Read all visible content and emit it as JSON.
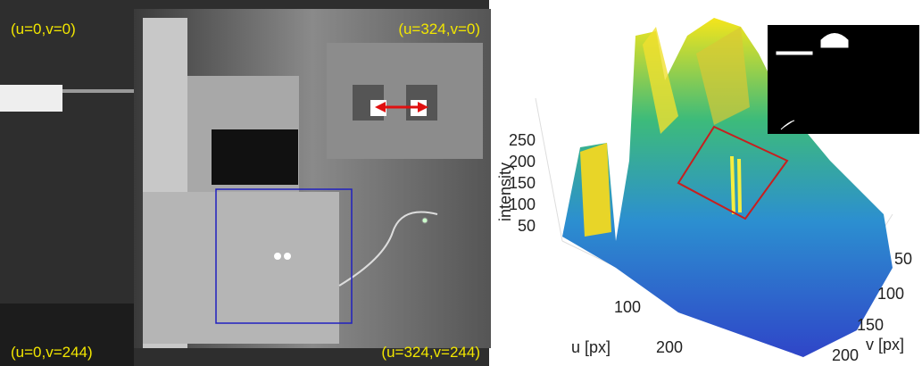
{
  "left_image": {
    "corner_labels": {
      "top_left": "(u=0,v=0)",
      "top_right": "(u=324,v=0)",
      "bottom_left": "(u=0,v=244)",
      "bottom_right": "(u=324,v=244)"
    }
  },
  "right_plot": {
    "z_label": "intensity",
    "z_ticks": [
      "250",
      "200",
      "150",
      "100",
      "50"
    ],
    "u_label": "u [px]",
    "u_ticks": [
      "100",
      "200"
    ],
    "v_label": "v [px]",
    "v_ticks": [
      "50",
      "100",
      "150",
      "200"
    ]
  }
}
